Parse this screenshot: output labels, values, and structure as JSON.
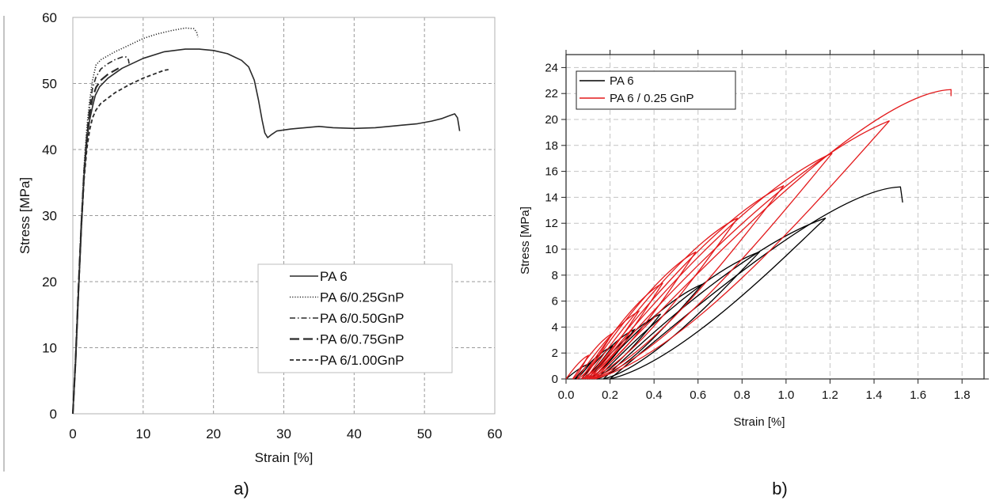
{
  "chart_data": [
    {
      "type": "line",
      "panel_label": "a)",
      "xlabel": "Strain [%]",
      "ylabel": "Stress [MPa]",
      "xlim": [
        0,
        60
      ],
      "ylim": [
        0,
        60
      ],
      "xticks": [
        0,
        10,
        20,
        30,
        40,
        50,
        60
      ],
      "yticks": [
        0,
        10,
        20,
        30,
        40,
        50,
        60
      ],
      "grid": true,
      "legend_position": "bottom-right",
      "series": [
        {
          "name": "PA 6",
          "style": "solid",
          "x": [
            0,
            0.4,
            0.8,
            1.2,
            1.6,
            2.0,
            2.4,
            2.8,
            3.2,
            3.8,
            5,
            7,
            10,
            13,
            16,
            18,
            20,
            22,
            24,
            25,
            25.8,
            26.4,
            26.9,
            27.3,
            27.7,
            28.3,
            29,
            31,
            33,
            35,
            37,
            40,
            43,
            46,
            49,
            51,
            52.5,
            53.5,
            54.3,
            54.7,
            54.9,
            55.0
          ],
          "y": [
            0,
            8,
            18,
            28,
            36,
            41.5,
            44.5,
            46.5,
            48.2,
            49.5,
            50.8,
            52.3,
            53.8,
            54.8,
            55.2,
            55.2,
            55.0,
            54.5,
            53.5,
            52.5,
            50.5,
            47.5,
            44.5,
            42.5,
            41.8,
            42.3,
            42.8,
            43.1,
            43.3,
            43.5,
            43.3,
            43.2,
            43.3,
            43.6,
            43.9,
            44.3,
            44.7,
            45.1,
            45.4,
            44.8,
            43.5,
            42.8
          ]
        },
        {
          "name": "PA 6/0.25GnP",
          "style": "dotted",
          "x": [
            0,
            0.4,
            0.8,
            1.2,
            1.6,
            2.0,
            2.4,
            2.8,
            3.3,
            4,
            6,
            8,
            10,
            12,
            14,
            16,
            17.2,
            17.6,
            17.8
          ],
          "y": [
            0,
            8.5,
            19,
            29,
            37.5,
            43.5,
            47.5,
            50.5,
            52.8,
            53.6,
            54.8,
            55.8,
            56.8,
            57.5,
            58.0,
            58.4,
            58.3,
            57.8,
            57.0
          ]
        },
        {
          "name": "PA 6/0.50GnP",
          "style": "dashdot",
          "x": [
            0,
            0.4,
            0.8,
            1.2,
            1.6,
            2.0,
            2.4,
            2.8,
            3.3,
            4,
            5,
            6,
            7,
            7.6,
            7.9,
            8.0
          ],
          "y": [
            0,
            8.5,
            19,
            29,
            37,
            42.5,
            46.5,
            49.3,
            51.0,
            52.2,
            53.0,
            53.6,
            54.0,
            54.0,
            53.6,
            53.0
          ]
        },
        {
          "name": "PA 6/0.75GnP",
          "style": "longdash",
          "x": [
            0,
            0.4,
            0.8,
            1.2,
            1.6,
            2.0,
            2.4,
            2.8,
            3.3,
            4,
            5,
            6,
            6.5
          ],
          "y": [
            0,
            8.5,
            19,
            28.5,
            36.5,
            41.8,
            45.5,
            47.8,
            49.4,
            50.5,
            51.4,
            52.0,
            52.3
          ]
        },
        {
          "name": "PA 6/1.00GnP",
          "style": "shortdash",
          "x": [
            0,
            0.4,
            0.8,
            1.2,
            1.6,
            2.0,
            2.4,
            2.8,
            3.3,
            4,
            5,
            6,
            8,
            10,
            12,
            13,
            13.6
          ],
          "y": [
            0,
            8.5,
            18.5,
            28,
            35.5,
            40.2,
            43.0,
            44.8,
            46.0,
            47.0,
            47.8,
            48.6,
            49.8,
            50.8,
            51.6,
            52.0,
            52.1
          ]
        }
      ]
    },
    {
      "type": "line",
      "panel_label": "b)",
      "xlabel": "Strain [%]",
      "ylabel": "Stress [MPa]",
      "xlim": [
        0,
        1.9
      ],
      "ylim": [
        0,
        25
      ],
      "xticks": [
        "0.0",
        "0.2",
        "0.4",
        "0.6",
        "0.8",
        "1.0",
        "1.2",
        "1.4",
        "1.6",
        "1.8"
      ],
      "yticks": [
        0,
        2,
        4,
        6,
        8,
        10,
        12,
        14,
        16,
        18,
        20,
        22,
        24
      ],
      "grid": true,
      "legend_position": "top-left",
      "series": [
        {
          "name": "PA 6",
          "color": "#000000",
          "loops": [
            {
              "start": 0.0,
              "peak": [
                0.11,
                1.2
              ],
              "end": 0.04
            },
            {
              "start": 0.04,
              "peak": [
                0.21,
                2.5
              ],
              "end": 0.07
            },
            {
              "start": 0.07,
              "peak": [
                0.31,
                3.8
              ],
              "end": 0.1
            },
            {
              "start": 0.1,
              "peak": [
                0.43,
                5.0
              ],
              "end": 0.12
            },
            {
              "start": 0.12,
              "peak": [
                0.62,
                7.3
              ],
              "end": 0.14
            },
            {
              "start": 0.14,
              "peak": [
                0.88,
                9.8
              ],
              "end": 0.17
            },
            {
              "start": 0.17,
              "peak": [
                1.18,
                12.4
              ],
              "end": 0.2
            }
          ],
          "final": {
            "start": 0.2,
            "peak": [
              1.52,
              14.8
            ],
            "drop": [
              1.53,
              13.6
            ]
          }
        },
        {
          "name": "PA 6 / 0.25 GnP",
          "color": "#e31a1c",
          "loops": [
            {
              "start": 0.0,
              "peak": [
                0.1,
                1.8
              ],
              "end": 0.03
            },
            {
              "start": 0.03,
              "peak": [
                0.21,
                3.5
              ],
              "end": 0.05
            },
            {
              "start": 0.05,
              "peak": [
                0.33,
                5.2
              ],
              "end": 0.07
            },
            {
              "start": 0.07,
              "peak": [
                0.44,
                7.4
              ],
              "end": 0.08
            },
            {
              "start": 0.08,
              "peak": [
                0.59,
                9.8
              ],
              "end": 0.09
            },
            {
              "start": 0.09,
              "peak": [
                0.78,
                12.4
              ],
              "end": 0.1
            },
            {
              "start": 0.1,
              "peak": [
                0.99,
                14.9
              ],
              "end": 0.11
            },
            {
              "start": 0.11,
              "peak": [
                1.21,
                17.4
              ],
              "end": 0.12
            },
            {
              "start": 0.12,
              "peak": [
                1.47,
                19.9
              ],
              "end": 0.13
            }
          ],
          "final": {
            "start": 0.13,
            "peak": [
              1.75,
              22.3
            ],
            "drop": [
              1.75,
              21.8
            ]
          }
        }
      ]
    }
  ]
}
